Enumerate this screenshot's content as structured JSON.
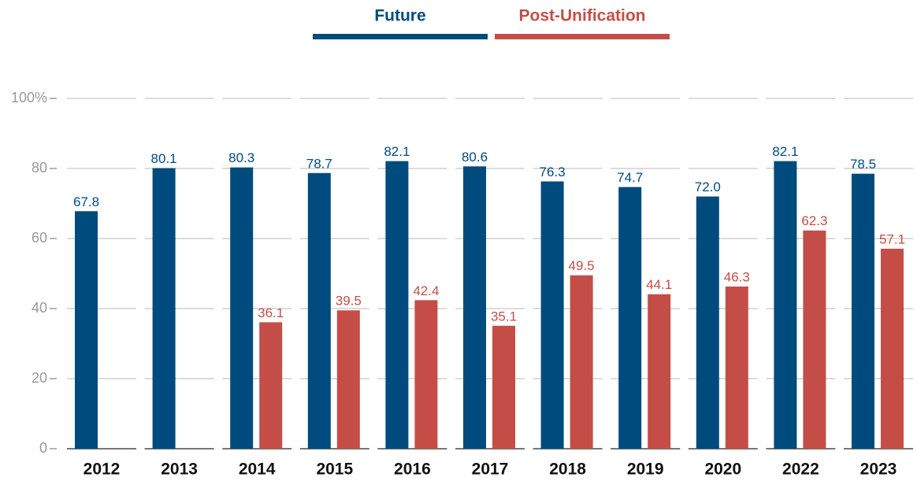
{
  "chart_data": {
    "type": "bar",
    "categories": [
      "2012",
      "2013",
      "2014",
      "2015",
      "2016",
      "2017",
      "2018",
      "2019",
      "2020",
      "2022",
      "2023"
    ],
    "series": [
      {
        "name": "Future",
        "color": "#004b7d",
        "values": [
          67.8,
          80.1,
          80.3,
          78.7,
          82.1,
          80.6,
          76.3,
          74.7,
          72.0,
          82.1,
          78.5
        ],
        "value_labels": [
          "67.8",
          "80.1",
          "80.3",
          "78.7",
          "82.1",
          "80.6",
          "76.3",
          "74.7",
          "72.0",
          "82.1",
          "78.5"
        ]
      },
      {
        "name": "Post-Unification",
        "color": "#c44e47",
        "values": [
          null,
          null,
          36.1,
          39.5,
          42.4,
          35.1,
          49.5,
          44.1,
          46.3,
          62.3,
          57.1
        ],
        "value_labels": [
          null,
          null,
          "36.1",
          "39.5",
          "42.4",
          "35.1",
          "49.5",
          "44.1",
          "46.3",
          "62.3",
          "57.1"
        ]
      }
    ],
    "ylim": [
      0,
      100
    ],
    "yticks": [
      0,
      20,
      40,
      60,
      80,
      {
        "value": 100,
        "label": "100%"
      }
    ],
    "grid": true,
    "legend": "top"
  }
}
